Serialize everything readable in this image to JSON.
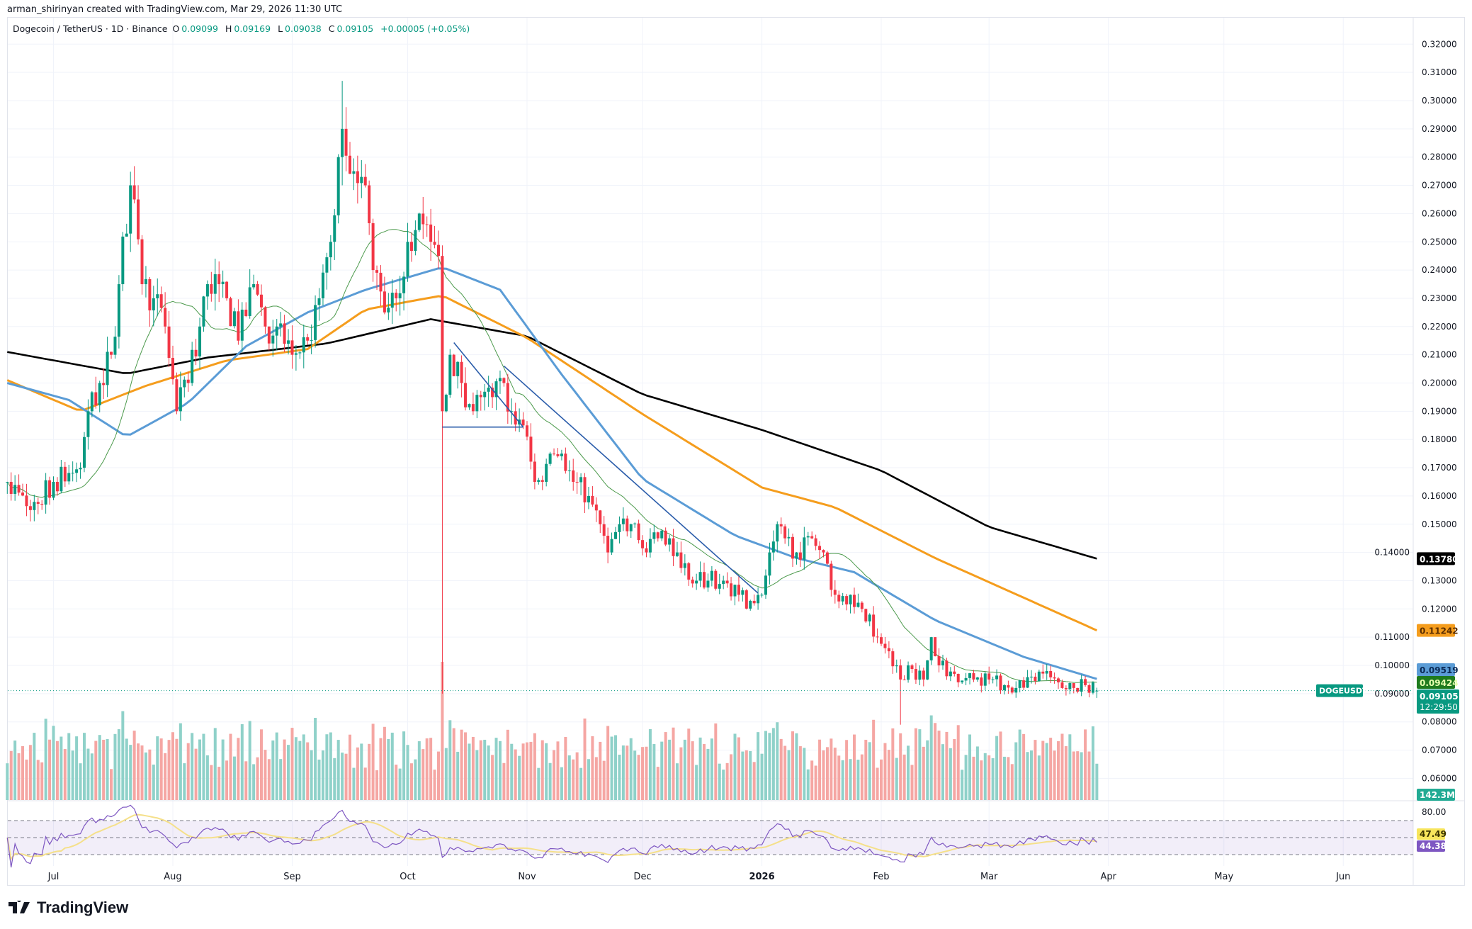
{
  "credit": "arman_shirinyan created with TradingView.com, Mar 29, 2026 11:30 UTC",
  "legend": {
    "symbol": "Dogecoin / TetherUS · 1D · Binance",
    "open_label": "O",
    "open": "0.09099",
    "high_label": "H",
    "high": "0.09169",
    "low_label": "L",
    "low": "0.09038",
    "close_label": "C",
    "close": "0.09105",
    "change": "+0.00005 (+0.05%)"
  },
  "brand": "TradingView",
  "colors": {
    "up": "#089981",
    "down": "#f23645",
    "vol_up": "#8fd1c9",
    "vol_down": "#f5a6a3",
    "ma200": "#000000",
    "ma100": "#f59d1d",
    "ma50": "#5b9cd6",
    "ma20": "#4c9a4c",
    "rsi": "#7e57c2",
    "rsi_ma": "#f5e08a",
    "trendline": "#2a5caa"
  },
  "chart_data": {
    "type": "candlestick",
    "symbol": "DOGEUSDT",
    "ylim": [
      0.055,
      0.325
    ],
    "y_ticks": [
      "0.32000",
      "0.31000",
      "0.30000",
      "0.29000",
      "0.28000",
      "0.27000",
      "0.26000",
      "0.25000",
      "0.24000",
      "0.23000",
      "0.22000",
      "0.21000",
      "0.20000",
      "0.19000",
      "0.18000",
      "0.17000",
      "0.16000",
      "0.15000",
      "0.14000",
      "0.13000",
      "0.12000",
      "0.11000",
      "0.10000",
      "0.09000",
      "0.08000",
      "0.07000",
      "0.06000"
    ],
    "x_ticks": [
      {
        "label": "Jul",
        "date": "2025-07-01"
      },
      {
        "label": "Aug",
        "date": "2025-08-01"
      },
      {
        "label": "Sep",
        "date": "2025-09-01"
      },
      {
        "label": "Oct",
        "date": "2025-10-01"
      },
      {
        "label": "Nov",
        "date": "2025-11-01"
      },
      {
        "label": "Dec",
        "date": "2025-12-01"
      },
      {
        "label": "2026",
        "date": "2026-01-01"
      },
      {
        "label": "Feb",
        "date": "2026-02-01"
      },
      {
        "label": "Mar",
        "date": "2026-03-01"
      },
      {
        "label": "Apr",
        "date": "2026-04-01"
      },
      {
        "label": "May",
        "date": "2026-05-01"
      },
      {
        "label": "Jun",
        "date": "2026-06-01"
      }
    ],
    "approx_closes": [
      [
        "2025-06-19",
        0.165
      ],
      [
        "2025-06-25",
        0.155
      ],
      [
        "2025-07-01",
        0.165
      ],
      [
        "2025-07-08",
        0.17
      ],
      [
        "2025-07-10",
        0.19
      ],
      [
        "2025-07-13",
        0.2
      ],
      [
        "2025-07-16",
        0.21
      ],
      [
        "2025-07-18",
        0.235
      ],
      [
        "2025-07-21",
        0.27
      ],
      [
        "2025-07-22",
        0.265
      ],
      [
        "2025-07-24",
        0.235
      ],
      [
        "2025-07-27",
        0.23
      ],
      [
        "2025-07-30",
        0.22
      ],
      [
        "2025-08-02",
        0.19
      ],
      [
        "2025-08-05",
        0.2
      ],
      [
        "2025-08-08",
        0.22
      ],
      [
        "2025-08-10",
        0.235
      ],
      [
        "2025-08-13",
        0.235
      ],
      [
        "2025-08-15",
        0.23
      ],
      [
        "2025-08-18",
        0.215
      ],
      [
        "2025-08-22",
        0.235
      ],
      [
        "2025-08-25",
        0.22
      ],
      [
        "2025-08-28",
        0.22
      ],
      [
        "2025-09-01",
        0.21
      ],
      [
        "2025-09-05",
        0.215
      ],
      [
        "2025-09-08",
        0.23
      ],
      [
        "2025-09-11",
        0.25
      ],
      [
        "2025-09-13",
        0.28
      ],
      [
        "2025-09-14",
        0.29
      ],
      [
        "2025-09-17",
        0.275
      ],
      [
        "2025-09-20",
        0.27
      ],
      [
        "2025-09-22",
        0.24
      ],
      [
        "2025-09-25",
        0.225
      ],
      [
        "2025-09-28",
        0.23
      ],
      [
        "2025-10-01",
        0.25
      ],
      [
        "2025-10-04",
        0.26
      ],
      [
        "2025-10-07",
        0.25
      ],
      [
        "2025-10-09",
        0.245
      ],
      [
        "2025-10-10",
        0.19
      ],
      [
        "2025-10-12",
        0.21
      ],
      [
        "2025-10-15",
        0.2
      ],
      [
        "2025-10-18",
        0.19
      ],
      [
        "2025-10-20",
        0.195
      ],
      [
        "2025-10-23",
        0.195
      ],
      [
        "2025-10-26",
        0.2
      ],
      [
        "2025-10-28",
        0.19
      ],
      [
        "2025-10-31",
        0.185
      ],
      [
        "2025-11-03",
        0.165
      ],
      [
        "2025-11-05",
        0.165
      ],
      [
        "2025-11-07",
        0.175
      ],
      [
        "2025-11-10",
        0.175
      ],
      [
        "2025-11-13",
        0.165
      ],
      [
        "2025-11-17",
        0.16
      ],
      [
        "2025-11-20",
        0.15
      ],
      [
        "2025-11-22",
        0.14
      ],
      [
        "2025-11-25",
        0.15
      ],
      [
        "2025-11-28",
        0.15
      ],
      [
        "2025-12-02",
        0.14
      ],
      [
        "2025-12-05",
        0.145
      ],
      [
        "2025-12-08",
        0.145
      ],
      [
        "2025-12-10",
        0.14
      ],
      [
        "2025-12-15",
        0.13
      ],
      [
        "2025-12-18",
        0.13
      ],
      [
        "2025-12-22",
        0.13
      ],
      [
        "2025-12-26",
        0.125
      ],
      [
        "2025-12-30",
        0.122
      ],
      [
        "2026-01-01",
        0.125
      ],
      [
        "2026-01-03",
        0.14
      ],
      [
        "2026-01-05",
        0.15
      ],
      [
        "2026-01-07",
        0.145
      ],
      [
        "2026-01-10",
        0.14
      ],
      [
        "2026-01-14",
        0.145
      ],
      [
        "2026-01-17",
        0.14
      ],
      [
        "2026-01-20",
        0.125
      ],
      [
        "2026-01-24",
        0.125
      ],
      [
        "2026-01-27",
        0.12
      ],
      [
        "2026-01-31",
        0.11
      ],
      [
        "2026-02-03",
        0.105
      ],
      [
        "2026-02-05",
        0.1
      ],
      [
        "2026-02-06",
        0.095
      ],
      [
        "2026-02-08",
        0.1
      ],
      [
        "2026-02-12",
        0.095
      ],
      [
        "2026-02-14",
        0.11
      ],
      [
        "2026-02-16",
        0.1
      ],
      [
        "2026-02-20",
        0.097
      ],
      [
        "2026-02-25",
        0.095
      ],
      [
        "2026-03-01",
        0.095
      ],
      [
        "2026-03-05",
        0.093
      ],
      [
        "2026-03-08",
        0.092
      ],
      [
        "2026-03-12",
        0.096
      ],
      [
        "2026-03-16",
        0.098
      ],
      [
        "2026-03-19",
        0.094
      ],
      [
        "2026-03-23",
        0.092
      ],
      [
        "2026-03-26",
        0.093
      ],
      [
        "2026-03-29",
        0.09105
      ]
    ],
    "extreme_wicks": [
      {
        "date": "2025-10-10",
        "high": 0.242,
        "low": 0.09
      },
      {
        "date": "2026-02-06",
        "high": 0.102,
        "low": 0.079
      },
      {
        "date": "2025-09-14",
        "high": 0.307,
        "low": 0.27
      }
    ],
    "moving_averages": [
      {
        "name": "MA200",
        "value": "0.13780",
        "color": "#000000",
        "points": [
          [
            "2025-06-19",
            0.211
          ],
          [
            "2025-07-20",
            0.2033
          ],
          [
            "2025-08-10",
            0.209
          ],
          [
            "2025-09-10",
            0.214
          ],
          [
            "2025-10-07",
            0.2226
          ],
          [
            "2025-11-01",
            0.2166
          ],
          [
            "2025-12-01",
            0.196
          ],
          [
            "2026-01-01",
            0.1834
          ],
          [
            "2026-02-01",
            0.169
          ],
          [
            "2026-03-01",
            0.149
          ],
          [
            "2026-03-29",
            0.1378
          ]
        ]
      },
      {
        "name": "MA100",
        "value": "0.11242",
        "color": "#f59d1d",
        "points": [
          [
            "2025-06-19",
            0.201
          ],
          [
            "2025-07-08",
            0.19
          ],
          [
            "2025-07-25",
            0.199
          ],
          [
            "2025-08-15",
            0.208
          ],
          [
            "2025-09-05",
            0.212
          ],
          [
            "2025-09-20",
            0.226
          ],
          [
            "2025-10-10",
            0.231
          ],
          [
            "2025-11-01",
            0.216
          ],
          [
            "2025-12-01",
            0.189
          ],
          [
            "2026-01-01",
            0.163
          ],
          [
            "2026-01-20",
            0.156
          ],
          [
            "2026-02-15",
            0.138
          ],
          [
            "2026-03-29",
            0.1124
          ]
        ]
      },
      {
        "name": "MA50",
        "value": "0.09519",
        "color": "#5b9cd6",
        "points": [
          [
            "2025-06-19",
            0.2
          ],
          [
            "2025-07-05",
            0.194
          ],
          [
            "2025-07-20",
            0.181
          ],
          [
            "2025-08-05",
            0.193
          ],
          [
            "2025-08-20",
            0.213
          ],
          [
            "2025-09-05",
            0.225
          ],
          [
            "2025-09-20",
            0.233
          ],
          [
            "2025-10-10",
            0.241
          ],
          [
            "2025-10-25",
            0.233
          ],
          [
            "2025-11-10",
            0.203
          ],
          [
            "2025-12-01",
            0.166
          ],
          [
            "2025-12-25",
            0.146
          ],
          [
            "2026-01-10",
            0.138
          ],
          [
            "2026-01-25",
            0.133
          ],
          [
            "2026-02-15",
            0.116
          ],
          [
            "2026-03-10",
            0.103
          ],
          [
            "2026-03-29",
            0.0952
          ]
        ]
      },
      {
        "name": "MA20",
        "value": "0.09424",
        "color": "#1e7b1e"
      }
    ],
    "trendlines": [
      {
        "from": [
          "2025-10-13",
          0.2143
        ],
        "to": [
          "2025-10-31",
          0.1844
        ]
      },
      {
        "from": [
          "2025-10-10",
          0.1844
        ],
        "to": [
          "2025-10-31",
          0.1844
        ]
      },
      {
        "from": [
          "2025-10-26",
          0.206
        ],
        "to": [
          "2025-12-31",
          0.1256
        ]
      }
    ],
    "last_price": {
      "label": "DOGEUSDT",
      "value": "0.09105",
      "countdown": "12:29:50"
    },
    "volume": {
      "last": "142.3M"
    },
    "rsi": {
      "ticks": [
        "80.00"
      ],
      "levels": [
        70,
        50,
        30
      ],
      "rsi_ma_value": "47.49",
      "rsi_value": "44.38"
    }
  }
}
